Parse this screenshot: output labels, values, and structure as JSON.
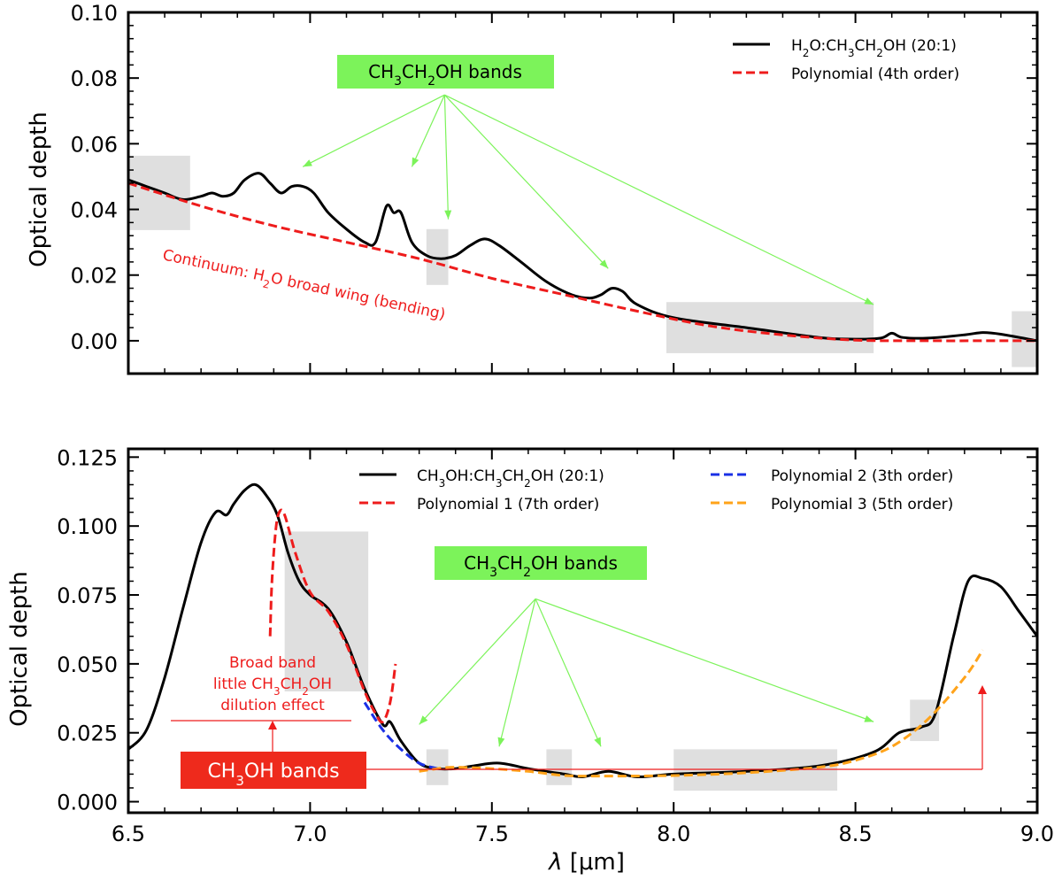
{
  "figure": {
    "xlabel": "λ [μm]"
  },
  "chart_data": [
    {
      "type": "line",
      "ylabel": "Optical depth",
      "xlim": [
        6.5,
        9.0
      ],
      "ylim": [
        -0.01,
        0.1
      ],
      "x_ticks": [
        6.5,
        7.0,
        7.5,
        8.0,
        8.5,
        9.0
      ],
      "y_ticks": [
        0.0,
        0.02,
        0.04,
        0.06,
        0.08,
        0.1
      ],
      "y_tick_labels": [
        "0.00",
        "0.02",
        "0.04",
        "0.06",
        "0.08",
        "0.10"
      ],
      "legend_position": "top-right",
      "series": [
        {
          "name": "H2O:CH3CH2OH (20:1)",
          "color": "#000000",
          "style": "solid",
          "x": [
            6.5,
            6.55,
            6.6,
            6.65,
            6.7,
            6.73,
            6.76,
            6.79,
            6.82,
            6.86,
            6.89,
            6.92,
            6.95,
            6.98,
            7.01,
            7.05,
            7.1,
            7.15,
            7.18,
            7.21,
            7.23,
            7.25,
            7.28,
            7.32,
            7.36,
            7.4,
            7.44,
            7.48,
            7.52,
            7.58,
            7.65,
            7.72,
            7.77,
            7.8,
            7.83,
            7.86,
            7.9,
            8.0,
            8.2,
            8.4,
            8.5,
            8.57,
            8.6,
            8.63,
            8.7,
            8.8,
            8.85,
            8.9,
            9.0
          ],
          "y": [
            0.049,
            0.047,
            0.045,
            0.043,
            0.044,
            0.045,
            0.044,
            0.045,
            0.049,
            0.051,
            0.048,
            0.045,
            0.047,
            0.047,
            0.045,
            0.039,
            0.034,
            0.03,
            0.03,
            0.041,
            0.039,
            0.039,
            0.03,
            0.026,
            0.025,
            0.026,
            0.029,
            0.031,
            0.029,
            0.024,
            0.018,
            0.014,
            0.013,
            0.014,
            0.016,
            0.015,
            0.011,
            0.007,
            0.004,
            0.001,
            0.0005,
            0.0008,
            0.0023,
            0.001,
            0.0008,
            0.0018,
            0.0025,
            0.002,
            0.0
          ]
        },
        {
          "name": "Polynomial (4th order)",
          "color": "#ee1c1c",
          "style": "dashed",
          "x": [
            6.5,
            6.7,
            6.9,
            7.1,
            7.3,
            7.5,
            7.7,
            7.9,
            8.1,
            8.3,
            8.5,
            8.7,
            8.9,
            9.0
          ],
          "y": [
            0.048,
            0.041,
            0.035,
            0.03,
            0.025,
            0.019,
            0.014,
            0.009,
            0.0045,
            0.0018,
            0.0002,
            0.0,
            0.0,
            0.0
          ]
        }
      ],
      "shaded_x_ranges": [
        [
          6.5,
          6.67
        ],
        [
          7.32,
          7.38
        ],
        [
          7.98,
          8.55
        ],
        [
          8.93,
          9.0
        ]
      ],
      "annotations": [
        {
          "text": "CH3CH2OH bands",
          "box_color": "#7cf35a",
          "arrow_color": "#7cf35a",
          "origin": [
            7.37,
            0.08
          ],
          "targets": [
            [
              6.98,
              0.053
            ],
            [
              7.28,
              0.053
            ],
            [
              7.38,
              0.037
            ],
            [
              7.82,
              0.022
            ],
            [
              8.55,
              0.011
            ]
          ]
        },
        {
          "text": "Continuum: H2O broad wing (bending)",
          "color": "#ee1c1c",
          "anchor": [
            7.3,
            0.016
          ]
        }
      ]
    },
    {
      "type": "line",
      "ylabel": "Optical depth",
      "xlim": [
        6.5,
        9.0
      ],
      "ylim": [
        -0.004,
        0.128
      ],
      "x_ticks": [
        6.5,
        7.0,
        7.5,
        8.0,
        8.5,
        9.0
      ],
      "x_tick_labels": [
        "6.5",
        "7.0",
        "7.5",
        "8.0",
        "8.5",
        "9.0"
      ],
      "y_ticks": [
        0.0,
        0.025,
        0.05,
        0.075,
        0.1,
        0.125
      ],
      "y_tick_labels": [
        "0.000",
        "0.025",
        "0.050",
        "0.075",
        "0.100",
        "0.125"
      ],
      "legend_position": "top-right",
      "series": [
        {
          "name": "CH3OH:CH3CH2OH (20:1)",
          "color": "#000000",
          "style": "solid",
          "x": [
            6.5,
            6.55,
            6.6,
            6.65,
            6.7,
            6.74,
            6.77,
            6.79,
            6.82,
            6.85,
            6.88,
            6.91,
            6.94,
            6.97,
            7.0,
            7.05,
            7.1,
            7.15,
            7.2,
            7.22,
            7.25,
            7.3,
            7.35,
            7.4,
            7.45,
            7.52,
            7.6,
            7.7,
            7.75,
            7.82,
            7.9,
            8.0,
            8.2,
            8.4,
            8.55,
            8.62,
            8.68,
            8.72,
            8.77,
            8.81,
            8.85,
            8.9,
            8.95,
            9.0
          ],
          "y": [
            0.019,
            0.026,
            0.045,
            0.07,
            0.094,
            0.105,
            0.104,
            0.108,
            0.113,
            0.115,
            0.111,
            0.104,
            0.09,
            0.08,
            0.075,
            0.07,
            0.058,
            0.041,
            0.028,
            0.029,
            0.022,
            0.014,
            0.012,
            0.012,
            0.013,
            0.014,
            0.012,
            0.01,
            0.009,
            0.011,
            0.009,
            0.01,
            0.011,
            0.013,
            0.018,
            0.025,
            0.027,
            0.032,
            0.06,
            0.08,
            0.081,
            0.078,
            0.069,
            0.06
          ]
        },
        {
          "name": "Polynomial 1 (7th order)",
          "color": "#ee1c1c",
          "style": "dashed",
          "x": [
            6.89,
            6.895,
            6.905,
            6.915,
            6.93,
            6.96,
            7.0,
            7.05,
            7.1,
            7.15,
            7.18,
            7.2,
            7.22,
            7.235
          ],
          "y": [
            0.06,
            0.08,
            0.098,
            0.105,
            0.104,
            0.09,
            0.076,
            0.069,
            0.057,
            0.04,
            0.032,
            0.029,
            0.036,
            0.05
          ]
        },
        {
          "name": "Polynomial 2 (3th order)",
          "color": "#1a30e6",
          "style": "dashed",
          "x": [
            7.15,
            7.2,
            7.25,
            7.3,
            7.35
          ],
          "y": [
            0.036,
            0.026,
            0.019,
            0.014,
            0.012
          ]
        },
        {
          "name": "Polynomial 3 (5th order)",
          "color": "#ffa31a",
          "style": "dashed",
          "x": [
            7.3,
            7.35,
            7.4,
            7.5,
            7.6,
            7.7,
            7.8,
            8.0,
            8.2,
            8.4,
            8.5,
            8.6,
            8.7,
            8.8,
            8.85
          ],
          "y": [
            0.011,
            0.012,
            0.0125,
            0.012,
            0.011,
            0.0095,
            0.0093,
            0.0095,
            0.0105,
            0.0125,
            0.015,
            0.02,
            0.03,
            0.045,
            0.055
          ]
        }
      ],
      "shaded_x_ranges": [
        [
          6.93,
          7.16
        ],
        [
          7.32,
          7.38
        ],
        [
          7.65,
          7.72
        ],
        [
          8.0,
          8.45
        ],
        [
          8.65,
          8.73
        ]
      ],
      "annotations": [
        {
          "text": "CH3CH2OH bands",
          "box_color": "#7cf35a",
          "arrow_color": "#7cf35a",
          "origin": [
            7.62,
            0.08
          ],
          "targets": [
            [
              7.3,
              0.028
            ],
            [
              7.52,
              0.02
            ],
            [
              7.8,
              0.02
            ],
            [
              8.55,
              0.029
            ]
          ]
        },
        {
          "text": "Broad band",
          "color": "#ee1c1c"
        },
        {
          "text": "little CH3CH2OH",
          "color": "#ee1c1c"
        },
        {
          "text": "dilution effect",
          "color": "#ee1c1c"
        },
        {
          "text": "CH3OH bands",
          "box_color": "#ee2a1c",
          "text_color": "#ffffff",
          "arrow_color": "#ee1c1c",
          "targets": [
            [
              6.93,
              0.019
            ],
            [
              8.84,
              0.03
            ]
          ]
        }
      ]
    }
  ]
}
